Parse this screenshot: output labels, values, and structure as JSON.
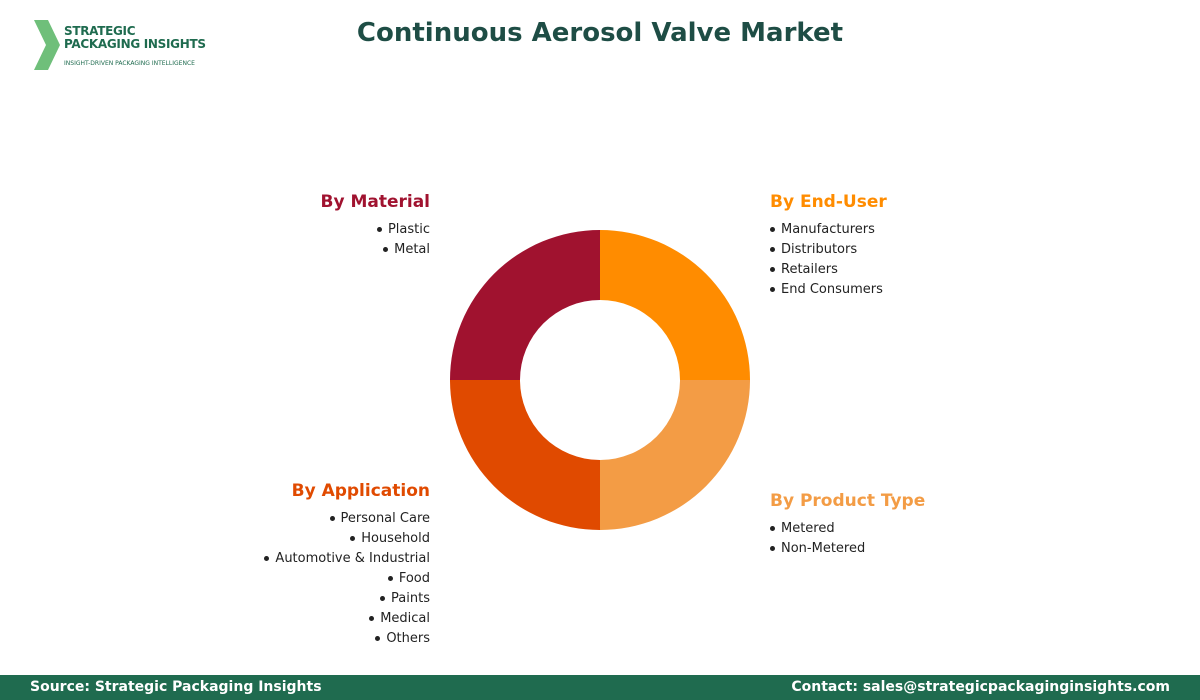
{
  "header": {
    "logo_line1": "STRATEGIC",
    "logo_line2": "PACKAGING INSIGHTS",
    "logo_tagline": "INSIGHT-DRIVEN PACKAGING INTELLIGENCE",
    "title": "Continuous Aerosol Valve Market"
  },
  "segments": [
    {
      "title": "By Material",
      "color": "#a0122f",
      "items": [
        "Plastic",
        "Metal"
      ]
    },
    {
      "title": "By End-User",
      "color": "#ff8c00",
      "items": [
        "Manufacturers",
        "Distributors",
        "Retailers",
        "End Consumers"
      ]
    },
    {
      "title": "By Application",
      "color": "#e04a00",
      "items": [
        "Personal Care",
        "Household",
        "Automotive & Industrial",
        "Food",
        "Paints",
        "Medical",
        "Others"
      ]
    },
    {
      "title": "By Product Type",
      "color": "#f39c45",
      "items": [
        "Metered",
        "Non-Metered"
      ]
    }
  ],
  "footer": {
    "source": "Source: Strategic Packaging Insights",
    "contact": "Contact: sales@strategicpackaginginsights.com"
  }
}
